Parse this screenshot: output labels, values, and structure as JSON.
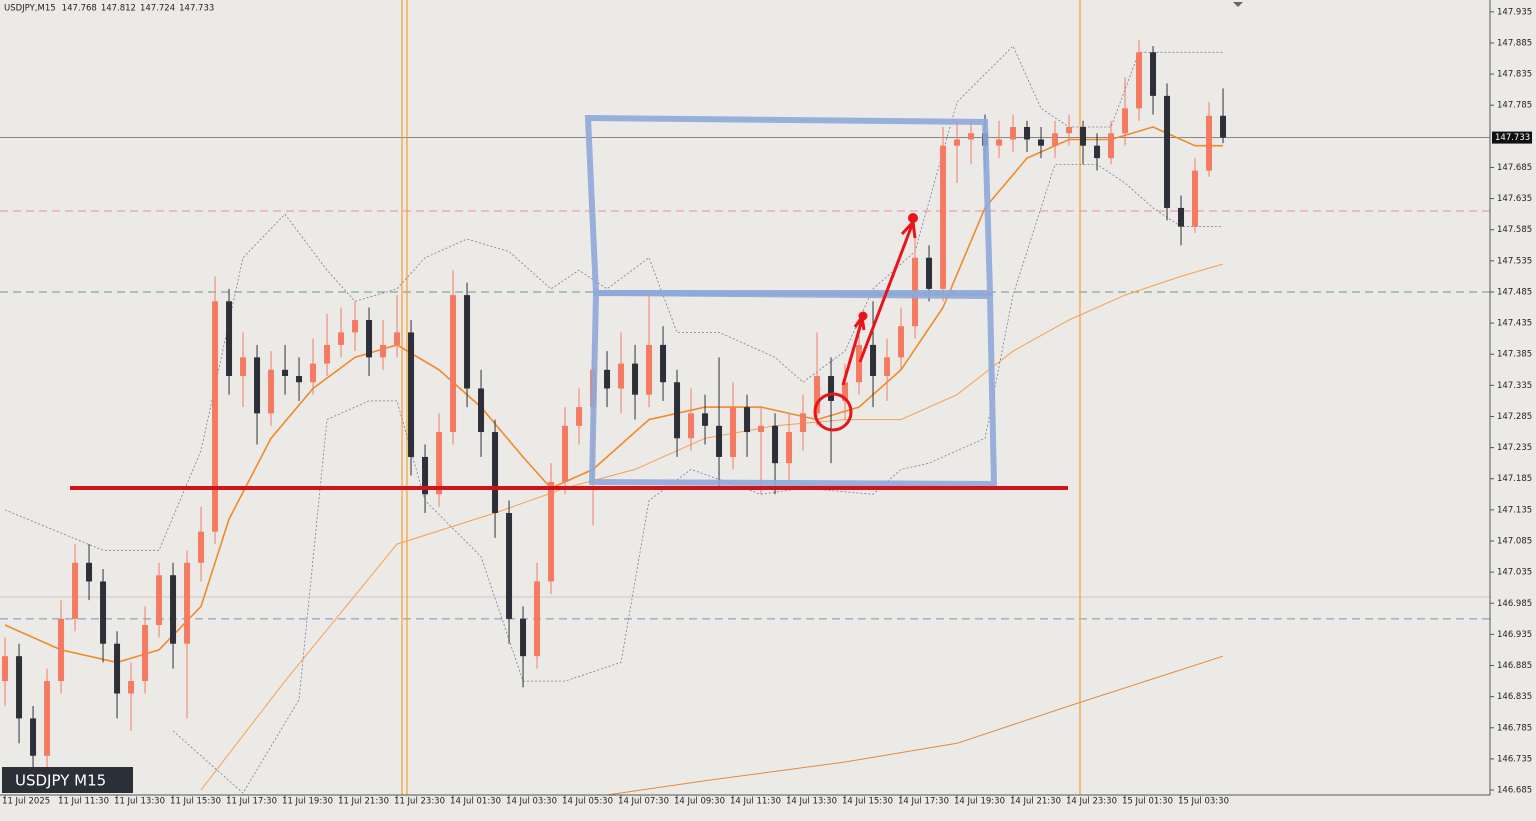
{
  "chart_data": {
    "type": "candlestick",
    "title": "USDJPY,M15",
    "label": "USDJPY M15",
    "up_color": "#f47b62",
    "down_color": "#2d3038",
    "open": [
      146.86,
      146.9,
      146.8,
      146.74,
      146.86,
      146.96,
      147.05,
      147.02,
      146.92,
      146.84,
      146.86,
      146.95,
      147.03,
      146.92,
      147.05,
      147.1,
      147.47,
      147.35,
      147.38,
      147.29,
      147.36,
      147.35,
      147.34,
      147.37,
      147.4,
      147.42,
      147.44,
      147.38,
      147.4,
      147.42,
      147.22,
      147.16,
      147.26,
      147.48,
      147.33,
      147.26,
      147.13,
      146.96,
      146.9,
      147.02,
      147.18,
      147.27,
      147.3,
      147.36,
      147.33,
      147.37,
      147.32,
      147.4,
      147.34,
      147.25,
      147.29,
      147.27,
      147.22,
      147.3,
      147.26,
      147.27,
      147.21,
      147.26,
      147.29,
      147.35,
      147.31,
      147.34,
      147.4,
      147.35,
      147.38,
      147.43,
      147.54,
      147.49,
      147.72,
      147.73,
      147.74,
      147.72,
      147.73,
      147.75,
      147.73,
      147.72,
      147.74,
      147.75,
      147.72,
      147.7,
      147.74,
      147.78,
      147.87,
      147.8,
      147.62,
      147.59,
      147.68,
      147.768
    ],
    "high": [
      146.93,
      146.92,
      146.82,
      146.88,
      146.99,
      147.08,
      147.08,
      147.04,
      146.94,
      146.89,
      146.98,
      147.05,
      147.05,
      147.07,
      147.14,
      147.51,
      147.49,
      147.42,
      147.4,
      147.39,
      147.4,
      147.38,
      147.41,
      147.45,
      147.46,
      147.47,
      147.46,
      147.44,
      147.48,
      147.44,
      147.24,
      147.29,
      147.52,
      147.5,
      147.36,
      147.28,
      147.15,
      146.98,
      147.05,
      147.21,
      147.3,
      147.33,
      147.4,
      147.39,
      147.42,
      147.4,
      147.48,
      147.43,
      147.36,
      147.33,
      147.32,
      147.38,
      147.34,
      147.32,
      147.3,
      147.29,
      147.29,
      147.32,
      147.42,
      147.38,
      147.37,
      147.44,
      147.47,
      147.41,
      147.46,
      147.58,
      147.56,
      147.75,
      147.76,
      147.76,
      147.77,
      147.76,
      147.77,
      147.76,
      147.75,
      147.76,
      147.77,
      147.76,
      147.74,
      147.76,
      147.83,
      147.89,
      147.88,
      147.82,
      147.64,
      147.7,
      147.79,
      147.812
    ],
    "low": [
      146.82,
      146.76,
      146.71,
      146.72,
      146.84,
      146.94,
      146.99,
      146.89,
      146.8,
      146.78,
      146.84,
      146.93,
      146.88,
      146.8,
      147.02,
      147.08,
      147.32,
      147.3,
      147.24,
      147.27,
      147.32,
      147.31,
      147.32,
      147.35,
      147.38,
      147.39,
      147.35,
      147.36,
      147.38,
      147.19,
      147.13,
      147.14,
      147.24,
      147.3,
      147.22,
      147.09,
      146.92,
      146.85,
      146.88,
      147.0,
      147.16,
      147.24,
      147.11,
      147.3,
      147.29,
      147.28,
      147.3,
      147.31,
      147.22,
      147.23,
      147.24,
      147.17,
      147.2,
      147.22,
      147.16,
      147.16,
      147.18,
      147.23,
      147.27,
      147.21,
      147.28,
      147.32,
      147.3,
      147.31,
      147.36,
      147.41,
      147.47,
      147.47,
      147.66,
      147.69,
      147.68,
      147.7,
      147.71,
      147.71,
      147.7,
      147.7,
      147.72,
      147.69,
      147.68,
      147.69,
      147.72,
      147.76,
      147.77,
      147.6,
      147.56,
      147.58,
      147.67,
      147.724
    ],
    "close": [
      146.9,
      146.8,
      146.74,
      146.86,
      146.96,
      147.05,
      147.02,
      146.92,
      146.84,
      146.86,
      146.95,
      147.03,
      146.92,
      147.05,
      147.1,
      147.47,
      147.35,
      147.38,
      147.29,
      147.36,
      147.35,
      147.34,
      147.37,
      147.4,
      147.42,
      147.44,
      147.38,
      147.4,
      147.42,
      147.22,
      147.16,
      147.26,
      147.48,
      147.33,
      147.26,
      147.13,
      146.96,
      146.9,
      147.02,
      147.18,
      147.27,
      147.3,
      147.36,
      147.33,
      147.37,
      147.32,
      147.4,
      147.34,
      147.25,
      147.29,
      147.27,
      147.22,
      147.3,
      147.26,
      147.27,
      147.21,
      147.26,
      147.29,
      147.35,
      147.31,
      147.34,
      147.4,
      147.35,
      147.38,
      147.43,
      147.54,
      147.49,
      147.72,
      147.73,
      147.74,
      147.72,
      147.73,
      147.75,
      147.73,
      147.72,
      147.74,
      147.75,
      147.72,
      147.7,
      147.74,
      147.78,
      147.87,
      147.8,
      147.62,
      147.59,
      147.68,
      147.768,
      147.733
    ],
    "xlim": [
      -0.36,
      106.07
    ],
    "ylim": [
      146.677,
      147.954
    ],
    "yticks": [
      147.935,
      147.885,
      147.835,
      147.785,
      147.685,
      147.635,
      147.585,
      147.535,
      147.485,
      147.435,
      147.385,
      147.335,
      147.285,
      147.235,
      147.185,
      147.135,
      147.085,
      147.035,
      146.985,
      146.935,
      146.885,
      146.835,
      146.785,
      146.735,
      146.685
    ],
    "xticks": [
      {
        "value": 0,
        "label": "11 Jul 2025"
      },
      {
        "value": 4,
        "label": "11 Jul 11:30"
      },
      {
        "value": 8,
        "label": "11 Jul 13:30"
      },
      {
        "value": 12,
        "label": "11 Jul 15:30"
      },
      {
        "value": 16,
        "label": "11 Jul 17:30"
      },
      {
        "value": 20,
        "label": "11 Jul 19:30"
      },
      {
        "value": 24,
        "label": "11 Jul 21:30"
      },
      {
        "value": 28,
        "label": "11 Jul 23:30"
      },
      {
        "value": 32,
        "label": "14 Jul 01:30"
      },
      {
        "value": 36,
        "label": "14 Jul 03:30"
      },
      {
        "value": 40,
        "label": "14 Jul 05:30"
      },
      {
        "value": 44,
        "label": "14 Jul 07:30"
      },
      {
        "value": 48,
        "label": "14 Jul 09:30"
      },
      {
        "value": 52,
        "label": "14 Jul 11:30"
      },
      {
        "value": 56,
        "label": "14 Jul 13:30"
      },
      {
        "value": 60,
        "label": "14 Jul 15:30"
      },
      {
        "value": 64,
        "label": "14 Jul 17:30"
      },
      {
        "value": 68,
        "label": "14 Jul 19:30"
      },
      {
        "value": 72,
        "label": "14 Jul 21:30"
      },
      {
        "value": 76,
        "label": "14 Jul 23:30"
      },
      {
        "value": 80,
        "label": "15 Jul 01:30"
      },
      {
        "value": 84,
        "label": "15 Jul 03:30"
      }
    ],
    "levels": [
      {
        "value": 147.615,
        "color": "#e88aa8",
        "style": "dashed"
      },
      {
        "value": 147.485,
        "color": "#6a9a7a",
        "style": "dashed"
      },
      {
        "value": 146.995,
        "color": "#c8c8c8",
        "style": "solid"
      },
      {
        "value": 146.96,
        "color": "#7a90c0",
        "style": "dashed"
      }
    ],
    "lines": [
      {
        "color": "#f08a2a",
        "width": 1.6,
        "style": "solid",
        "x": [
          0,
          4,
          8,
          11,
          14,
          16,
          19,
          22,
          25,
          28,
          31,
          34,
          37,
          39,
          42,
          46,
          50,
          54,
          58,
          61,
          64,
          67,
          70,
          73,
          76,
          79,
          82,
          85,
          87
        ],
        "values": [
          146.95,
          146.91,
          146.89,
          146.91,
          146.98,
          147.12,
          147.25,
          147.33,
          147.38,
          147.4,
          147.36,
          147.3,
          147.22,
          147.17,
          147.2,
          147.28,
          147.3,
          147.3,
          147.28,
          147.3,
          147.36,
          147.46,
          147.62,
          147.7,
          147.73,
          147.73,
          147.75,
          147.72,
          147.72
        ]
      },
      {
        "color": "#f5a050",
        "width": 1,
        "style": "solid",
        "x": [
          14,
          20,
          28,
          35,
          40,
          45,
          50,
          55,
          60,
          64,
          68,
          72,
          76,
          80,
          84,
          87
        ],
        "values": [
          146.685,
          146.86,
          147.08,
          147.13,
          147.17,
          147.2,
          147.25,
          147.27,
          147.28,
          147.28,
          147.32,
          147.39,
          147.44,
          147.48,
          147.51,
          147.53
        ]
      },
      {
        "color": "#e08a40",
        "width": 1,
        "style": "solid",
        "x": [
          43,
          50,
          60,
          68,
          76,
          87
        ],
        "values": [
          146.677,
          146.7,
          146.73,
          146.76,
          146.82,
          146.9
        ]
      },
      {
        "color": "#7a7a9a",
        "width": 0.8,
        "style": "dotted",
        "x": [
          0,
          7,
          11,
          14,
          17,
          20,
          23,
          25,
          28,
          30,
          33,
          36,
          39,
          41,
          43,
          46,
          48,
          51,
          55,
          57,
          60,
          62,
          65,
          68,
          72,
          74,
          76,
          79,
          81,
          84,
          87
        ],
        "values": [
          147.135,
          147.07,
          147.07,
          147.23,
          147.54,
          147.61,
          147.52,
          147.47,
          147.49,
          147.54,
          147.57,
          147.55,
          147.49,
          147.52,
          147.49,
          147.54,
          147.42,
          147.42,
          147.38,
          147.34,
          147.39,
          147.49,
          147.55,
          147.79,
          147.88,
          147.78,
          147.75,
          147.75,
          147.87,
          147.87,
          147.87
        ]
      },
      {
        "color": "#7a7a9a",
        "width": 0.8,
        "style": "dotted",
        "x": [
          12,
          17,
          21,
          23,
          26,
          28,
          30,
          34,
          37,
          40,
          44,
          46,
          49,
          54,
          57,
          62,
          64,
          66,
          70,
          72,
          75,
          78,
          80,
          82,
          84,
          87
        ],
        "values": [
          146.78,
          146.68,
          146.83,
          147.28,
          147.31,
          147.31,
          147.15,
          147.06,
          146.86,
          146.86,
          146.89,
          147.15,
          147.2,
          147.16,
          147.17,
          147.16,
          147.2,
          147.21,
          147.25,
          147.48,
          147.69,
          147.69,
          147.66,
          147.62,
          147.59,
          147.59
        ]
      }
    ]
  }
}
